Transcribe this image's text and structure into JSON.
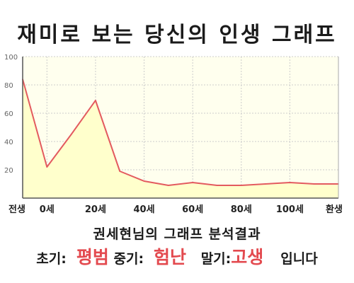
{
  "title": "재미로 보는 당신의 인생 그래프",
  "summary": {
    "heading": "권세현님의 그래프 분석결과",
    "early_label": "초기:",
    "early_value": "평범",
    "middle_label": "중기:",
    "middle_value": "험난",
    "late_label": "말기:",
    "late_value": "고생",
    "ending": "입니다"
  },
  "chart_data": {
    "type": "area",
    "title": "",
    "xlabel": "",
    "ylabel": "",
    "ylim": [
      0,
      100
    ],
    "yticks": [
      20,
      40,
      60,
      80,
      100
    ],
    "x_ticks": [
      "전생",
      "0세",
      "20세",
      "40세",
      "60세",
      "80세",
      "100세",
      "환생"
    ],
    "grid": true,
    "colors": {
      "line": "#e35a5f",
      "fill": "#ffffcc",
      "plot_bg": "#ffffee",
      "grid": "#cccccc"
    },
    "series": [
      {
        "x": [
          "전생",
          "0세",
          "10세",
          "20세",
          "30세",
          "40세",
          "50세",
          "60세",
          "70세",
          "80세",
          "90세",
          "100세",
          "110세",
          "환생"
        ],
        "values": [
          84,
          22,
          45,
          69,
          19,
          12,
          9,
          11,
          9,
          9,
          10,
          11,
          10,
          10
        ]
      }
    ]
  }
}
